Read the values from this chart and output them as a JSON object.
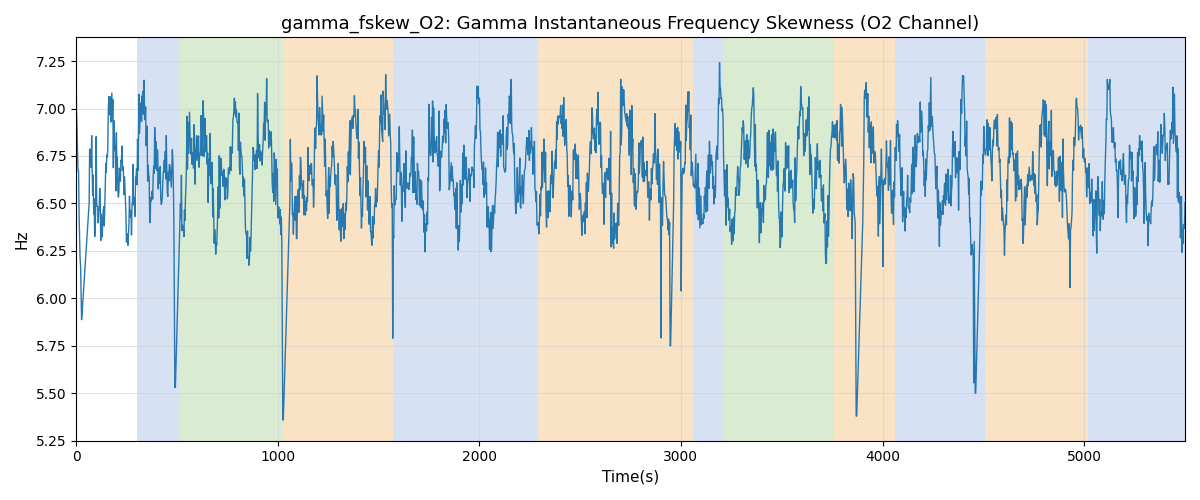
{
  "title": "gamma_fskew_O2: Gamma Instantaneous Frequency Skewness (O2 Channel)",
  "xlabel": "Time(s)",
  "ylabel": "Hz",
  "ylim": [
    5.25,
    7.375
  ],
  "xlim": [
    0,
    5500
  ],
  "line_color": "#2878b0",
  "line_width": 1.0,
  "bg_bands": [
    {
      "xmin": 300,
      "xmax": 510,
      "color": "#aec6e8",
      "alpha": 0.5
    },
    {
      "xmin": 510,
      "xmax": 1030,
      "color": "#b5d9a5",
      "alpha": 0.5
    },
    {
      "xmin": 1030,
      "xmax": 1570,
      "color": "#f5c88a",
      "alpha": 0.5
    },
    {
      "xmin": 1570,
      "xmax": 2290,
      "color": "#aec6e8",
      "alpha": 0.5
    },
    {
      "xmin": 2290,
      "xmax": 3060,
      "color": "#f5c88a",
      "alpha": 0.5
    },
    {
      "xmin": 3060,
      "xmax": 3210,
      "color": "#aec6e8",
      "alpha": 0.5
    },
    {
      "xmin": 3210,
      "xmax": 3760,
      "color": "#b5d9a5",
      "alpha": 0.5
    },
    {
      "xmin": 3760,
      "xmax": 4060,
      "color": "#f5c88a",
      "alpha": 0.5
    },
    {
      "xmin": 4060,
      "xmax": 4510,
      "color": "#aec6e8",
      "alpha": 0.5
    },
    {
      "xmin": 4510,
      "xmax": 5020,
      "color": "#f5c88a",
      "alpha": 0.5
    },
    {
      "xmin": 5020,
      "xmax": 5500,
      "color": "#aec6e8",
      "alpha": 0.5
    }
  ],
  "seed": 42,
  "n_points": 2200,
  "signal_mean": 6.67,
  "title_fontsize": 13,
  "tick_fontsize": 10,
  "label_fontsize": 11
}
